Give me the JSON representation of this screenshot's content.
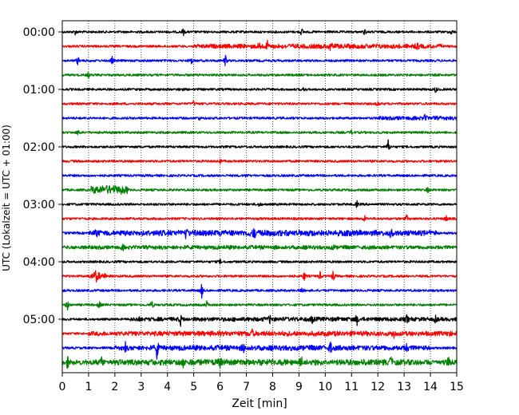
{
  "chart_data": {
    "type": "line",
    "title": "",
    "xlabel": "Zeit  [min]",
    "ylabel": "UTC (Lokalzeit = UTC + 01:00)",
    "xlim": [
      0,
      15
    ],
    "x_ticks": [
      0,
      1,
      2,
      3,
      4,
      5,
      6,
      7,
      8,
      9,
      10,
      11,
      12,
      13,
      14,
      15
    ],
    "x_grid": "dotted vertical lines at each minute",
    "trace_interval_min": 15,
    "y_tick_labels": [
      "00:00",
      "01:00",
      "02:00",
      "03:00",
      "04:00",
      "05:00"
    ],
    "color_cycle": [
      "#000000",
      "#ff0000",
      "#0000ff",
      "#008000"
    ],
    "traces": [
      {
        "start": "00:00",
        "color": "#000000",
        "events": [
          {
            "t": 0.5,
            "a": 0.4
          },
          {
            "t": 4.6,
            "a": 0.5
          },
          {
            "t": 9.1,
            "a": 0.6
          },
          {
            "t": 11.5,
            "a": 0.5
          },
          {
            "t": 14.8,
            "a": 0.4
          }
        ],
        "bursts": []
      },
      {
        "start": "00:15",
        "color": "#ff0000",
        "events": [
          {
            "t": 7.5,
            "a": 0.6
          },
          {
            "t": 7.8,
            "a": 0.6
          },
          {
            "t": 10.2,
            "a": 0.7
          },
          {
            "t": 13.5,
            "a": 0.5
          }
        ],
        "bursts": [
          {
            "t0": 5.0,
            "t1": 14.5,
            "a": 0.35
          }
        ]
      },
      {
        "start": "00:30",
        "color": "#0000ff",
        "events": [
          {
            "t": 0.6,
            "a": 0.8
          },
          {
            "t": 1.9,
            "a": 0.6
          },
          {
            "t": 4.9,
            "a": 0.7
          },
          {
            "t": 6.2,
            "a": 0.9
          }
        ],
        "bursts": []
      },
      {
        "start": "00:45",
        "color": "#008000",
        "events": [
          {
            "t": 1.0,
            "a": 0.4
          }
        ],
        "bursts": []
      },
      {
        "start": "01:00",
        "color": "#000000",
        "events": [
          {
            "t": 4.5,
            "a": 0.4
          },
          {
            "t": 9.2,
            "a": 0.4
          },
          {
            "t": 14.2,
            "a": 0.5
          }
        ],
        "bursts": []
      },
      {
        "start": "01:15",
        "color": "#ff0000",
        "events": [
          {
            "t": 5.0,
            "a": 0.4
          },
          {
            "t": 12.0,
            "a": 0.4
          }
        ],
        "bursts": []
      },
      {
        "start": "01:30",
        "color": "#0000ff",
        "events": [
          {
            "t": 5.2,
            "a": 0.3
          },
          {
            "t": 13.8,
            "a": 0.4
          }
        ],
        "bursts": [
          {
            "t0": 12.0,
            "t1": 15.0,
            "a": 0.25
          }
        ]
      },
      {
        "start": "01:45",
        "color": "#008000",
        "events": [
          {
            "t": 0.6,
            "a": 0.4
          },
          {
            "t": 11.0,
            "a": 0.3
          }
        ],
        "bursts": []
      },
      {
        "start": "02:00",
        "color": "#000000",
        "events": [
          {
            "t": 12.4,
            "a": 1.0
          }
        ],
        "bursts": []
      },
      {
        "start": "02:15",
        "color": "#ff0000",
        "events": [
          {
            "t": 6.0,
            "a": 0.3
          }
        ],
        "bursts": []
      },
      {
        "start": "02:30",
        "color": "#0000ff",
        "events": [
          {
            "t": 7.0,
            "a": 0.3
          }
        ],
        "bursts": []
      },
      {
        "start": "02:45",
        "color": "#008000",
        "events": [
          {
            "t": 13.9,
            "a": 0.4
          }
        ],
        "bursts": [
          {
            "t0": 1.1,
            "t1": 2.5,
            "a": 1.0
          }
        ]
      },
      {
        "start": "03:00",
        "color": "#000000",
        "events": [
          {
            "t": 7.5,
            "a": 0.4
          },
          {
            "t": 11.2,
            "a": 0.5
          }
        ],
        "bursts": []
      },
      {
        "start": "03:15",
        "color": "#ff0000",
        "events": [
          {
            "t": 11.5,
            "a": 0.5
          },
          {
            "t": 13.1,
            "a": 0.5
          },
          {
            "t": 14.6,
            "a": 0.5
          }
        ],
        "bursts": []
      },
      {
        "start": "03:30",
        "color": "#0000ff",
        "events": [
          {
            "t": 1.3,
            "a": 0.6
          },
          {
            "t": 4.7,
            "a": 0.8
          },
          {
            "t": 7.3,
            "a": 0.7
          },
          {
            "t": 12.5,
            "a": 0.6
          }
        ],
        "bursts": [
          {
            "t0": 1.0,
            "t1": 14.3,
            "a": 0.55
          }
        ]
      },
      {
        "start": "03:45",
        "color": "#008000",
        "events": [
          {
            "t": 2.3,
            "a": 0.4
          },
          {
            "t": 10.3,
            "a": 0.3
          }
        ],
        "bursts": [
          {
            "t0": 0.0,
            "t1": 15.0,
            "a": 0.25
          }
        ]
      },
      {
        "start": "04:00",
        "color": "#000000",
        "events": [
          {
            "t": 6.0,
            "a": 0.3
          }
        ],
        "bursts": []
      },
      {
        "start": "04:15",
        "color": "#ff0000",
        "events": [
          {
            "t": 1.3,
            "a": 1.0
          },
          {
            "t": 9.2,
            "a": 0.8
          },
          {
            "t": 9.8,
            "a": 0.6
          },
          {
            "t": 10.3,
            "a": 0.8
          }
        ],
        "bursts": [
          {
            "t0": 1.0,
            "t1": 1.7,
            "a": 0.6
          }
        ]
      },
      {
        "start": "04:30",
        "color": "#0000ff",
        "events": [
          {
            "t": 5.3,
            "a": 1.1
          },
          {
            "t": 9.1,
            "a": 0.5
          }
        ],
        "bursts": []
      },
      {
        "start": "04:45",
        "color": "#008000",
        "events": [
          {
            "t": 0.2,
            "a": 0.9
          },
          {
            "t": 1.4,
            "a": 0.6
          },
          {
            "t": 3.4,
            "a": 0.7
          },
          {
            "t": 5.5,
            "a": 0.5
          }
        ],
        "bursts": []
      },
      {
        "start": "05:00",
        "color": "#000000",
        "events": [
          {
            "t": 2.9,
            "a": 0.5
          },
          {
            "t": 4.5,
            "a": 0.7
          },
          {
            "t": 7.9,
            "a": 0.6
          },
          {
            "t": 9.5,
            "a": 0.5
          },
          {
            "t": 11.2,
            "a": 0.8
          },
          {
            "t": 13.1,
            "a": 0.6
          },
          {
            "t": 14.2,
            "a": 0.5
          }
        ],
        "bursts": [
          {
            "t0": 2.5,
            "t1": 15.0,
            "a": 0.3
          }
        ]
      },
      {
        "start": "05:15",
        "color": "#ff0000",
        "events": [
          {
            "t": 7.2,
            "a": 0.6
          },
          {
            "t": 12.6,
            "a": 0.6
          },
          {
            "t": 14.7,
            "a": 0.6
          }
        ],
        "bursts": [
          {
            "t0": 1.0,
            "t1": 15.0,
            "a": 0.4
          }
        ]
      },
      {
        "start": "05:30",
        "color": "#0000ff",
        "events": [
          {
            "t": 2.4,
            "a": 0.6
          },
          {
            "t": 3.6,
            "a": 1.6
          },
          {
            "t": 6.9,
            "a": 0.5
          },
          {
            "t": 10.2,
            "a": 0.9
          },
          {
            "t": 13.1,
            "a": 0.8
          }
        ],
        "bursts": [
          {
            "t0": 2.0,
            "t1": 14.0,
            "a": 0.45
          }
        ]
      },
      {
        "start": "05:45",
        "color": "#008000",
        "events": [
          {
            "t": 0.2,
            "a": 0.9
          },
          {
            "t": 1.5,
            "a": 0.6
          },
          {
            "t": 4.6,
            "a": 0.7
          },
          {
            "t": 6.0,
            "a": 0.7
          },
          {
            "t": 9.1,
            "a": 0.6
          },
          {
            "t": 12.5,
            "a": 0.7
          },
          {
            "t": 14.7,
            "a": 0.9
          }
        ],
        "bursts": [
          {
            "t0": 0.0,
            "t1": 15.0,
            "a": 0.55
          }
        ]
      }
    ]
  }
}
